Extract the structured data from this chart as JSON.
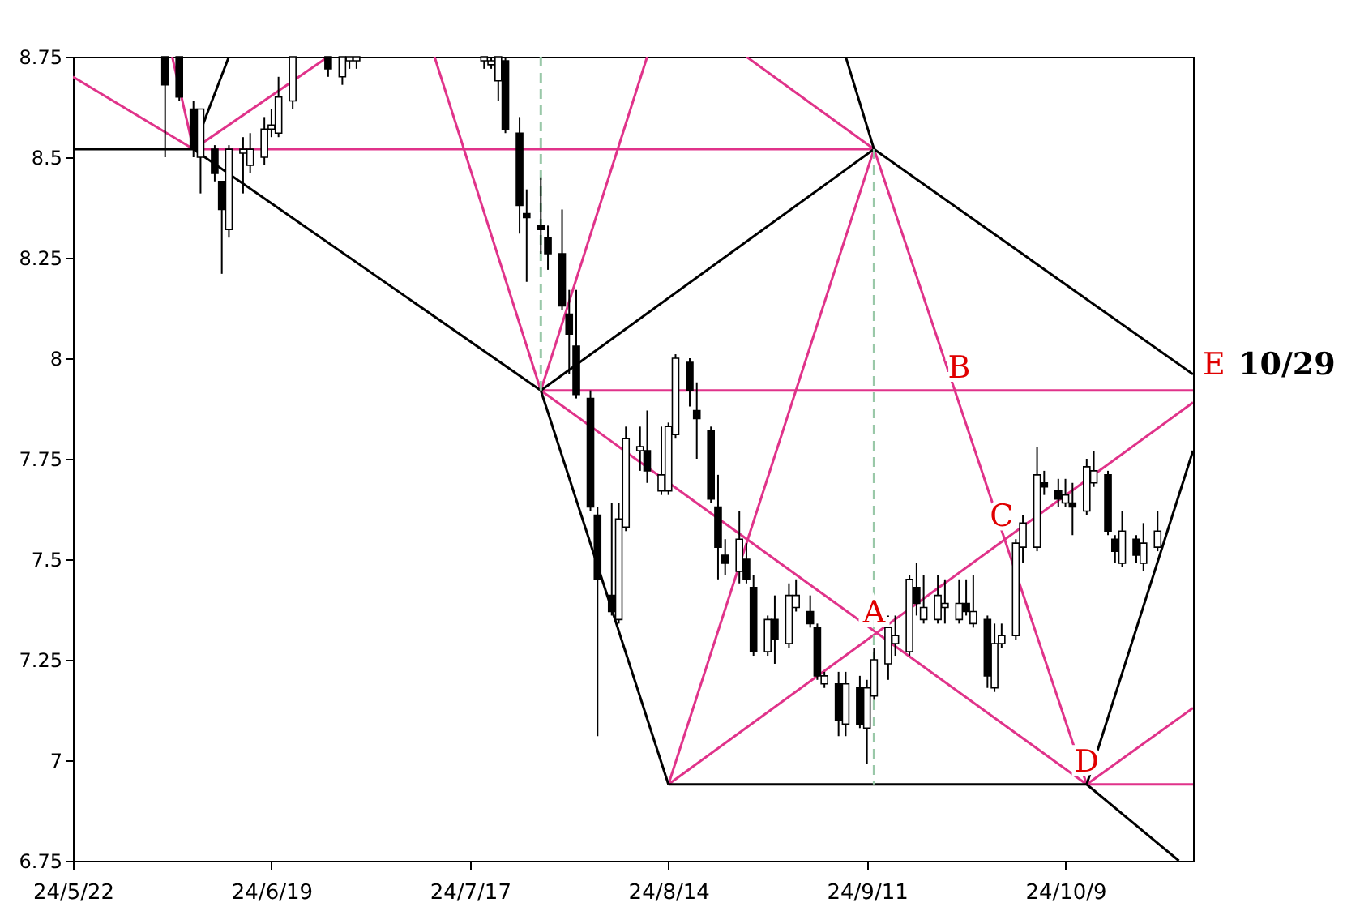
{
  "chart_data": {
    "type": "candlestick",
    "x": [
      "--06-04",
      "--06-06",
      "--06-08",
      "--06-09",
      "--06-11",
      "--06-12",
      "--06-13",
      "--06-15",
      "--06-16",
      "--06-18",
      "--06-19",
      "--06-20",
      "--06-22",
      "--06-27",
      "--06-29",
      "--06-30",
      "--07-01",
      "--07-19",
      "--07-20",
      "--07-21",
      "--07-22",
      "--07-24",
      "--07-25",
      "--07-27",
      "--07-28",
      "--07-30",
      "--07-31",
      "--08-01",
      "--08-03",
      "--08-04",
      "--08-06",
      "--08-07",
      "--08-08",
      "--08-10",
      "--08-11",
      "--08-13",
      "--08-14",
      "--08-15",
      "--08-17",
      "--08-18",
      "--08-20",
      "--08-21",
      "--08-22",
      "--08-24",
      "--08-25",
      "--08-26",
      "--08-28",
      "--08-29",
      "--08-31",
      "--09-01",
      "--09-03",
      "--09-04",
      "--09-05",
      "--09-07",
      "--09-08",
      "--09-10",
      "--09-11",
      "--09-12",
      "--09-14",
      "--09-15",
      "--09-17",
      "--09-18",
      "--09-19",
      "--09-21",
      "--09-22",
      "--09-24",
      "--09-25",
      "--09-26",
      "--09-28",
      "--09-29",
      "--09-30",
      "--10-02",
      "--10-03",
      "--10-05",
      "--10-06",
      "--10-08",
      "--10-09",
      "--10-10",
      "--10-12",
      "--10-13",
      "--10-15",
      "--10-16",
      "--10-17",
      "--10-19",
      "--10-20",
      "--10-22"
    ],
    "ohlc": [
      [
        8.75,
        8.75,
        8.5,
        8.68
      ],
      [
        8.75,
        8.75,
        8.64,
        8.65
      ],
      [
        8.62,
        8.64,
        8.5,
        8.52
      ],
      [
        8.5,
        8.62,
        8.41,
        8.62
      ],
      [
        8.52,
        8.53,
        8.44,
        8.46
      ],
      [
        8.44,
        8.44,
        8.21,
        8.37
      ],
      [
        8.32,
        8.53,
        8.3,
        8.52
      ],
      [
        8.51,
        8.55,
        8.41,
        8.52
      ],
      [
        8.48,
        8.56,
        8.46,
        8.52
      ],
      [
        8.5,
        8.6,
        8.48,
        8.57
      ],
      [
        8.57,
        8.62,
        8.55,
        8.58
      ],
      [
        8.56,
        8.7,
        8.55,
        8.65
      ],
      [
        8.64,
        8.75,
        8.62,
        8.75
      ],
      [
        8.75,
        8.75,
        8.7,
        8.72
      ],
      [
        8.7,
        8.75,
        8.68,
        8.75
      ],
      [
        8.74,
        8.75,
        8.72,
        8.75
      ],
      [
        8.74,
        8.75,
        8.72,
        8.75
      ],
      [
        8.74,
        8.75,
        8.72,
        8.75
      ],
      [
        8.73,
        8.75,
        8.72,
        8.74
      ],
      [
        8.69,
        8.75,
        8.64,
        8.75
      ],
      [
        8.74,
        8.75,
        8.56,
        8.57
      ],
      [
        8.56,
        8.6,
        8.31,
        8.38
      ],
      [
        8.36,
        8.42,
        8.19,
        8.35
      ],
      [
        8.33,
        8.45,
        8.26,
        8.32
      ],
      [
        8.3,
        8.33,
        8.22,
        8.26
      ],
      [
        8.26,
        8.37,
        8.12,
        8.13
      ],
      [
        8.11,
        8.17,
        7.96,
        8.06
      ],
      [
        8.03,
        8.17,
        7.9,
        7.91
      ],
      [
        7.9,
        7.92,
        7.62,
        7.63
      ],
      [
        7.61,
        7.63,
        7.06,
        7.45
      ],
      [
        7.41,
        7.64,
        7.36,
        7.37
      ],
      [
        7.35,
        7.64,
        7.34,
        7.6
      ],
      [
        7.58,
        7.83,
        7.57,
        7.8
      ],
      [
        7.77,
        7.83,
        7.72,
        7.78
      ],
      [
        7.77,
        7.87,
        7.69,
        7.72
      ],
      [
        7.67,
        7.83,
        7.66,
        7.71
      ],
      [
        7.67,
        7.84,
        7.66,
        7.83
      ],
      [
        7.81,
        8.01,
        7.8,
        8.0
      ],
      [
        7.99,
        8.0,
        7.88,
        7.92
      ],
      [
        7.87,
        7.94,
        7.75,
        7.85
      ],
      [
        7.82,
        7.83,
        7.64,
        7.65
      ],
      [
        7.63,
        7.71,
        7.45,
        7.53
      ],
      [
        7.51,
        7.55,
        7.46,
        7.49
      ],
      [
        7.47,
        7.62,
        7.44,
        7.55
      ],
      [
        7.5,
        7.54,
        7.44,
        7.45
      ],
      [
        7.43,
        7.46,
        7.26,
        7.27
      ],
      [
        7.27,
        7.36,
        7.26,
        7.35
      ],
      [
        7.35,
        7.41,
        7.24,
        7.3
      ],
      [
        7.29,
        7.44,
        7.28,
        7.41
      ],
      [
        7.38,
        7.45,
        7.37,
        7.41
      ],
      [
        7.37,
        7.41,
        7.33,
        7.34
      ],
      [
        7.33,
        7.34,
        7.2,
        7.21
      ],
      [
        7.19,
        7.22,
        7.18,
        7.21
      ],
      [
        7.19,
        7.22,
        7.06,
        7.1
      ],
      [
        7.09,
        7.22,
        7.06,
        7.19
      ],
      [
        7.18,
        7.21,
        7.08,
        7.09
      ],
      [
        7.08,
        7.2,
        6.99,
        7.18
      ],
      [
        7.16,
        7.28,
        7.15,
        7.25
      ],
      [
        7.24,
        7.36,
        7.2,
        7.33
      ],
      [
        7.29,
        7.36,
        7.26,
        7.31
      ],
      [
        7.27,
        7.46,
        7.26,
        7.45
      ],
      [
        7.43,
        7.49,
        7.36,
        7.39
      ],
      [
        7.35,
        7.46,
        7.34,
        7.38
      ],
      [
        7.35,
        7.46,
        7.34,
        7.41
      ],
      [
        7.38,
        7.45,
        7.34,
        7.39
      ],
      [
        7.35,
        7.45,
        7.34,
        7.39
      ],
      [
        7.39,
        7.45,
        7.36,
        7.37
      ],
      [
        7.34,
        7.46,
        7.33,
        7.37
      ],
      [
        7.35,
        7.36,
        7.18,
        7.21
      ],
      [
        7.18,
        7.34,
        7.17,
        7.29
      ],
      [
        7.29,
        7.34,
        7.28,
        7.31
      ],
      [
        7.31,
        7.55,
        7.3,
        7.54
      ],
      [
        7.53,
        7.61,
        7.49,
        7.59
      ],
      [
        7.53,
        7.78,
        7.52,
        7.71
      ],
      [
        7.69,
        7.72,
        7.66,
        7.68
      ],
      [
        7.67,
        7.7,
        7.63,
        7.65
      ],
      [
        7.64,
        7.7,
        7.63,
        7.66
      ],
      [
        7.64,
        7.69,
        7.56,
        7.63
      ],
      [
        7.62,
        7.75,
        7.61,
        7.73
      ],
      [
        7.69,
        7.77,
        7.68,
        7.72
      ],
      [
        7.71,
        7.72,
        7.56,
        7.57
      ],
      [
        7.55,
        7.56,
        7.49,
        7.52
      ],
      [
        7.49,
        7.62,
        7.48,
        7.57
      ],
      [
        7.55,
        7.56,
        7.49,
        7.51
      ],
      [
        7.49,
        7.59,
        7.47,
        7.54
      ],
      [
        7.53,
        7.62,
        7.52,
        7.57
      ]
    ],
    "series": [
      {
        "type": "line",
        "color": "#e0338a",
        "line_style": "solid",
        "x": [
          "--06-08",
          "--09-12"
        ],
        "values": [
          8.52,
          8.52
        ]
      },
      {
        "type": "line",
        "color": "#e0338a",
        "line_style": "solid",
        "x": [
          "--07-27",
          "--10-27"
        ],
        "values": [
          7.92,
          7.92
        ]
      },
      {
        "type": "line",
        "color": "#e0338a",
        "line_style": "solid",
        "x": [
          "--10-12",
          "--10-27"
        ],
        "values": [
          6.94,
          6.94
        ]
      },
      {
        "type": "line",
        "color": "#e0338a",
        "line_style": "solid",
        "x": [
          "--06-08",
          "--06-27"
        ],
        "values": [
          8.52,
          8.75
        ]
      },
      {
        "type": "line",
        "color": "#e0338a",
        "line_style": "solid",
        "x": [
          "--05-22",
          "--06-08"
        ],
        "values": [
          8.7,
          8.52
        ]
      },
      {
        "type": "line",
        "color": "#e0338a",
        "line_style": "solid",
        "x": [
          "--06-05",
          "--06-08"
        ],
        "values": [
          8.75,
          8.52
        ]
      },
      {
        "type": "line",
        "color": "#e0338a",
        "line_style": "solid",
        "x": [
          "--07-12",
          "--07-27"
        ],
        "values": [
          8.75,
          7.92
        ]
      },
      {
        "type": "line",
        "color": "#e0338a",
        "line_style": "solid",
        "x": [
          "--08-11",
          "--07-27"
        ],
        "values": [
          8.75,
          7.92
        ]
      },
      {
        "type": "line",
        "color": "#e0338a",
        "line_style": "solid",
        "x": [
          "--08-25",
          "--09-12"
        ],
        "values": [
          8.75,
          8.52
        ]
      },
      {
        "type": "line",
        "color": "#e0338a",
        "line_style": "solid",
        "x": [
          "--07-27",
          "--10-12"
        ],
        "values": [
          7.92,
          6.94
        ]
      },
      {
        "type": "line",
        "color": "#e0338a",
        "line_style": "solid",
        "x": [
          "--08-14",
          "--10-27"
        ],
        "values": [
          6.94,
          7.89
        ]
      },
      {
        "type": "line",
        "color": "#e0338a",
        "line_style": "solid",
        "x": [
          "--08-14",
          "--09-12"
        ],
        "values": [
          6.94,
          8.52
        ]
      },
      {
        "type": "line",
        "color": "#e0338a",
        "line_style": "solid",
        "x": [
          "--09-12",
          "--10-12"
        ],
        "values": [
          8.52,
          6.94
        ]
      },
      {
        "type": "line",
        "color": "#e0338a",
        "line_style": "solid",
        "x": [
          "--10-12",
          "--10-27"
        ],
        "values": [
          6.94,
          7.13
        ]
      },
      {
        "type": "line",
        "color": "#000000",
        "line_style": "solid",
        "x": [
          "--05-22",
          "--06-08"
        ],
        "values": [
          8.52,
          8.52
        ]
      },
      {
        "type": "line",
        "color": "#000000",
        "line_style": "solid",
        "x": [
          "--06-08",
          "--07-27"
        ],
        "values": [
          8.52,
          7.92
        ]
      },
      {
        "type": "line",
        "color": "#000000",
        "line_style": "solid",
        "x": [
          "--07-27",
          "--09-12"
        ],
        "values": [
          7.92,
          8.52
        ]
      },
      {
        "type": "line",
        "color": "#000000",
        "line_style": "solid",
        "x": [
          "--09-12",
          "--10-27"
        ],
        "values": [
          8.52,
          7.96
        ]
      },
      {
        "type": "line",
        "color": "#000000",
        "line_style": "solid",
        "x": [
          "--07-27",
          "--08-14"
        ],
        "values": [
          7.92,
          6.94
        ]
      },
      {
        "type": "line",
        "color": "#000000",
        "line_style": "solid",
        "x": [
          "--08-14",
          "--10-12"
        ],
        "values": [
          6.94,
          6.94
        ]
      },
      {
        "type": "line",
        "color": "#000000",
        "line_style": "solid",
        "x": [
          "--10-12",
          "--10-27"
        ],
        "values": [
          6.94,
          7.77
        ]
      },
      {
        "type": "line",
        "color": "#000000",
        "line_style": "solid",
        "x": [
          "--10-12",
          "--10-25"
        ],
        "values": [
          6.94,
          6.75
        ]
      },
      {
        "type": "line",
        "color": "#000000",
        "line_style": "solid",
        "x": [
          "--06-08",
          "--06-13"
        ],
        "values": [
          8.52,
          8.75
        ]
      },
      {
        "type": "line",
        "color": "#000000",
        "line_style": "solid",
        "x": [
          "--09-08",
          "--09-12"
        ],
        "values": [
          8.75,
          8.52
        ]
      },
      {
        "type": "line",
        "color": "#99c8a8",
        "line_style": "dashed",
        "x": [
          "--07-27",
          "--07-27"
        ],
        "values": [
          8.75,
          7.92
        ]
      },
      {
        "type": "line",
        "color": "#99c8a8",
        "line_style": "dashed",
        "x": [
          "--09-12",
          "--09-12"
        ],
        "values": [
          8.52,
          6.94
        ]
      }
    ],
    "xlim": [
      "--05-22",
      "--10-27"
    ],
    "xticks": [
      {
        "value": "--05-22",
        "label": "24/5/22"
      },
      {
        "value": "--06-19",
        "label": "24/6/19"
      },
      {
        "value": "--07-17",
        "label": "24/7/17"
      },
      {
        "value": "--08-14",
        "label": "24/8/14"
      },
      {
        "value": "--09-11",
        "label": "24/9/11"
      },
      {
        "value": "--10-09",
        "label": "24/10/9"
      }
    ],
    "ylim": [
      6.75,
      8.75
    ],
    "yticks": [
      6.75,
      7,
      7.25,
      7.5,
      7.75,
      8,
      8.25,
      8.5,
      8.75
    ],
    "annotations": [
      {
        "text": "A",
        "x": "--09-12",
        "y": 7.31
      },
      {
        "text": "B",
        "x": "--09-24",
        "y": 7.92
      },
      {
        "text": "C",
        "x": "--09-30",
        "y": 7.55
      },
      {
        "text": "D",
        "x": "--10-12",
        "y": 6.94
      },
      "E",
      "10/29"
    ]
  }
}
